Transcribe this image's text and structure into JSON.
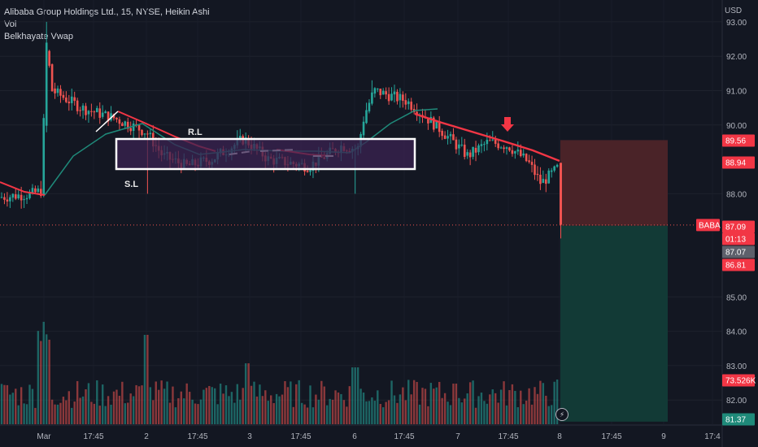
{
  "legend": {
    "title": "Alibaba Group Holdings Ltd., 15, NYSE, Heikin Ashi",
    "line2": "Vol",
    "line3": "Belkhayate Vwap"
  },
  "currency": "USD",
  "colors": {
    "background": "#131722",
    "up": "#26a69a",
    "down": "#ef5350",
    "vwap_red": "#f23645",
    "vwap_teal": "#1f8a7a",
    "box": "#ffffff",
    "box_fill": "#3b2352",
    "stop_zone": "#4a2328",
    "target_zone": "#123a36"
  },
  "chart_data": {
    "type": "candlestick",
    "price_axis_ticks": [
      "93.00",
      "92.00",
      "91.00",
      "90.00",
      "88.00",
      "85.00",
      "84.00",
      "83.00",
      "82.00"
    ],
    "time_axis_ticks": [
      "Mar",
      "17:45",
      "2",
      "17:45",
      "3",
      "17:45",
      "6",
      "17:45",
      "7",
      "17:45",
      "8",
      "17:45",
      "9",
      "17:4"
    ],
    "price_tags": [
      {
        "label": "89.56",
        "kind": "red"
      },
      {
        "label": "88.94",
        "kind": "red"
      },
      {
        "label": "87.09",
        "kind": "red"
      },
      {
        "label": "01:13",
        "kind": "red"
      },
      {
        "label": "87.07",
        "kind": "gray"
      },
      {
        "label": "86.81",
        "kind": "red"
      },
      {
        "label": "73.526K",
        "kind": "red"
      },
      {
        "label": "81.37",
        "kind": "teal"
      }
    ],
    "symbol_tag": "BABA",
    "annotations": {
      "resistance": "R.L",
      "support": "S.L"
    },
    "ylim": [
      81.3,
      93.2
    ],
    "last_price": 87.09,
    "position": {
      "entry": 87.07,
      "stop": 89.56,
      "target": 81.37
    }
  },
  "bolt_icon": "⚡"
}
